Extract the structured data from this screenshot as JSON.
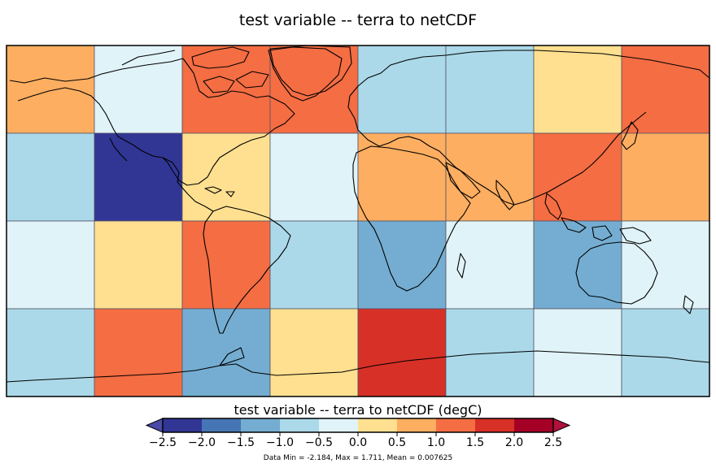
{
  "title": "test variable -- terra to netCDF",
  "colorbar": {
    "label": "test variable -- terra to netCDF (degC)",
    "ticks": [
      "−2.5",
      "−2.0",
      "−1.5",
      "−1.0",
      "−0.5",
      "0.0",
      "0.5",
      "1.0",
      "1.5",
      "2.0",
      "2.5"
    ],
    "colors": [
      "#313695",
      "#4575b4",
      "#74add1",
      "#abd9e9",
      "#e0f3f8",
      "#fee090",
      "#fdae61",
      "#f46d43",
      "#d73027",
      "#a50026"
    ],
    "extend_low_color": "#4a4aa8",
    "extend_high_color": "#b0123c",
    "stats": "Data Min = -2.184, Max = 1.711, Mean = 0.007625"
  },
  "chart_data": {
    "type": "heatmap",
    "projection": "cylindrical, global",
    "columns": 8,
    "rows": 4,
    "grid": [
      [
        0.7,
        -0.3,
        1.3,
        1.3,
        -0.8,
        -0.8,
        0.3,
        1.3
      ],
      [
        -0.8,
        -2.2,
        0.3,
        -0.3,
        0.7,
        0.7,
        1.3,
        0.7
      ],
      [
        -0.3,
        0.3,
        1.3,
        -0.8,
        -1.2,
        -0.3,
        -1.2,
        -0.3
      ],
      [
        -0.8,
        1.3,
        -1.2,
        0.3,
        1.7,
        -0.8,
        -0.3,
        -0.8
      ]
    ],
    "levels": [
      -2.5,
      -2.0,
      -1.5,
      -1.0,
      -0.5,
      0.0,
      0.5,
      1.0,
      1.5,
      2.0,
      2.5
    ]
  }
}
